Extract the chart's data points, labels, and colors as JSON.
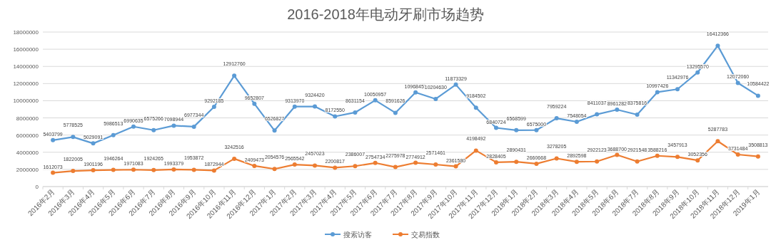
{
  "chart_data": {
    "type": "line",
    "title": "2016-2018年电动牙刷市场趋势",
    "categories": [
      "2016年2月",
      "2016年3月",
      "2016年4月",
      "2016年5月",
      "2016年6月",
      "2016年7月",
      "2016年8月",
      "2016年9月",
      "2016年10月",
      "2016年11月",
      "2016年12月",
      "2017年1月",
      "2017年2月",
      "2017年3月",
      "2017年4月",
      "2017年5月",
      "2017年6月",
      "2017年7月",
      "2017年8月",
      "2017年9月",
      "2017年10月",
      "2017年11月",
      "2017年12月",
      "2018年1月",
      "2018年2月",
      "2018年3月",
      "2018年4月",
      "2018年5月",
      "2018年6月",
      "2018年7月",
      "2018年8月",
      "2018年9月",
      "2018年10月",
      "2018年11月",
      "2018年12月",
      "2019年1月"
    ],
    "series": [
      {
        "name": "搜索访客",
        "color": "#5b9bd5",
        "values": [
          5403799,
          5778525,
          5029091,
          5986513,
          6990635,
          6575266,
          7098944,
          6977344,
          9292185,
          12912760,
          9652807,
          6526827,
          9313970,
          9324420,
          8172550,
          8631154,
          10050957,
          8591626,
          10968451,
          10204630,
          11873329,
          9184502,
          6840724,
          6568599,
          6575000,
          7959224,
          7548054,
          8411037,
          8961282,
          8375816,
          10997426,
          11342976,
          13295570,
          16412366,
          12072060,
          10584422
        ]
      },
      {
        "name": "交易指数",
        "color": "#ed7d31",
        "values": [
          1612073,
          1822005,
          1901196,
          1946264,
          1971083,
          1924265,
          1993379,
          1953872,
          1872944,
          3242516,
          2409473,
          2054576,
          2565542,
          2457023,
          2200817,
          2386007,
          2754734,
          2275978,
          2774912,
          2571461,
          2361580,
          4198492,
          2828405,
          2890431,
          2660668,
          3278205,
          2892598,
          2922123,
          3688700,
          2921548,
          3588216,
          3457913,
          3052356,
          5287783,
          3731484,
          3508813
        ]
      }
    ],
    "ylim": [
      0,
      18000000
    ],
    "yticks": [
      0,
      2000000,
      4000000,
      6000000,
      8000000,
      10000000,
      12000000,
      14000000,
      16000000,
      18000000
    ],
    "grid": "y",
    "legend": "bottom",
    "marker": "circle",
    "line_style": "solid",
    "data_labels": true
  }
}
